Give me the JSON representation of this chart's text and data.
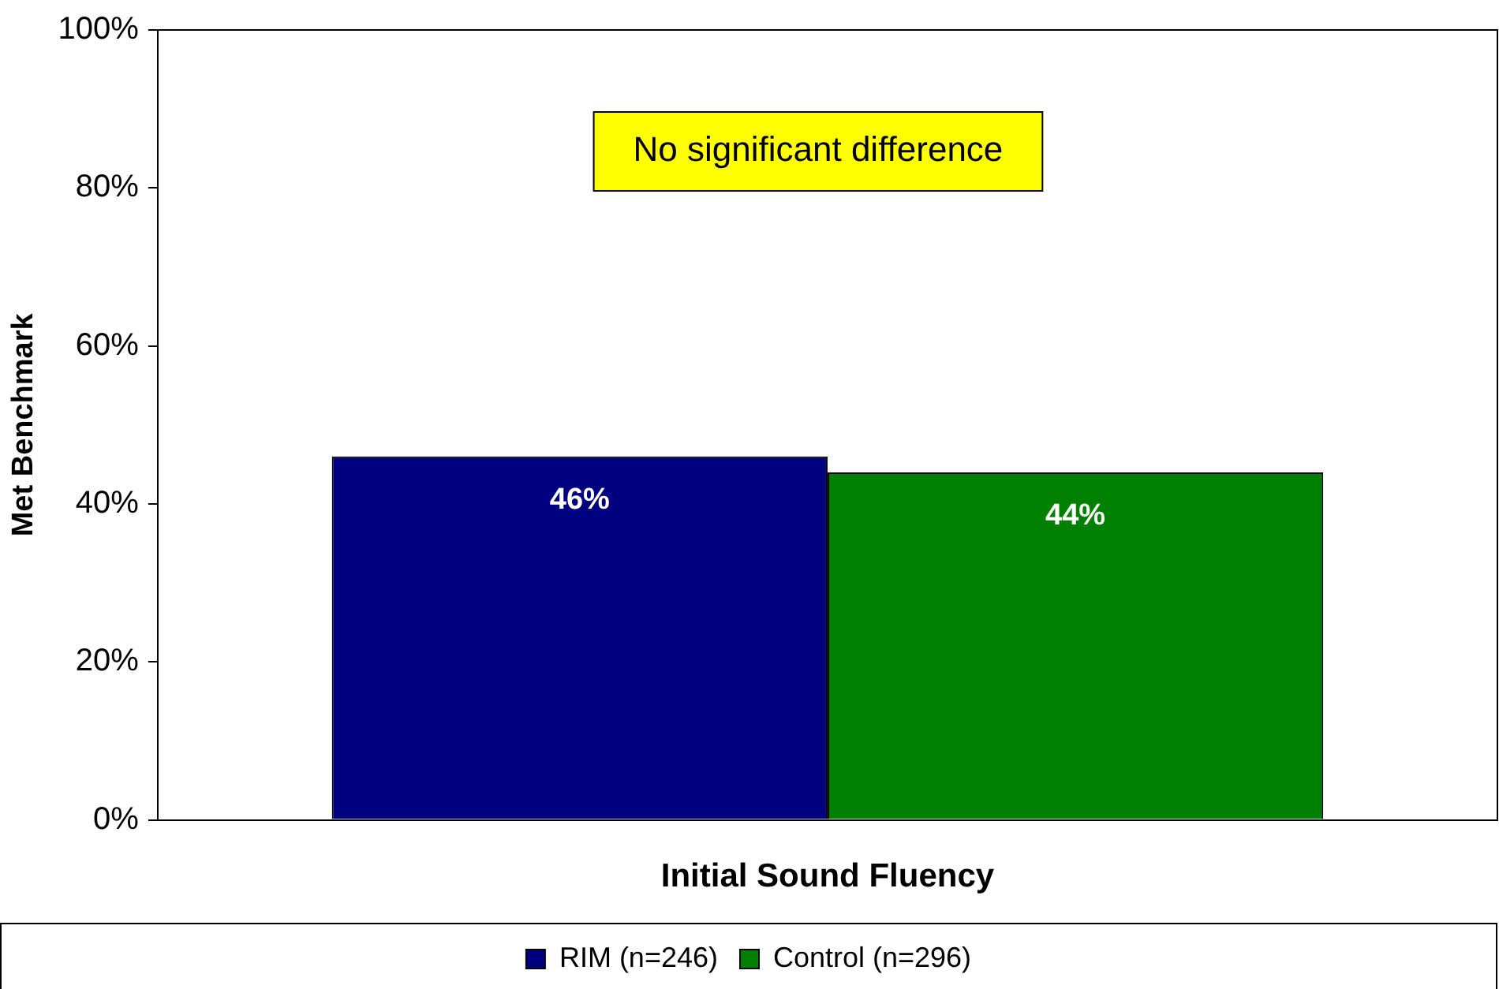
{
  "chart_data": {
    "type": "bar",
    "ylabel": "Met Benchmark",
    "categories": [
      "Initial Sound Fluency"
    ],
    "series": [
      {
        "name": "RIM (n=246)",
        "color": "#000080",
        "values": [
          46
        ]
      },
      {
        "name": "Control (n=296)",
        "color": "#008000",
        "values": [
          44
        ]
      }
    ],
    "ylim": [
      0,
      100
    ],
    "yticks": [
      {
        "value": 0,
        "label": "0%"
      },
      {
        "value": 20,
        "label": "20%"
      },
      {
        "value": 40,
        "label": "40%"
      },
      {
        "value": 60,
        "label": "60%"
      },
      {
        "value": 80,
        "label": "80%"
      },
      {
        "value": 100,
        "label": "100%"
      }
    ],
    "value_labels": [
      "46%",
      "44%"
    ],
    "annotations": [
      "No significant difference"
    ],
    "grid": false,
    "legend": "bottom"
  }
}
